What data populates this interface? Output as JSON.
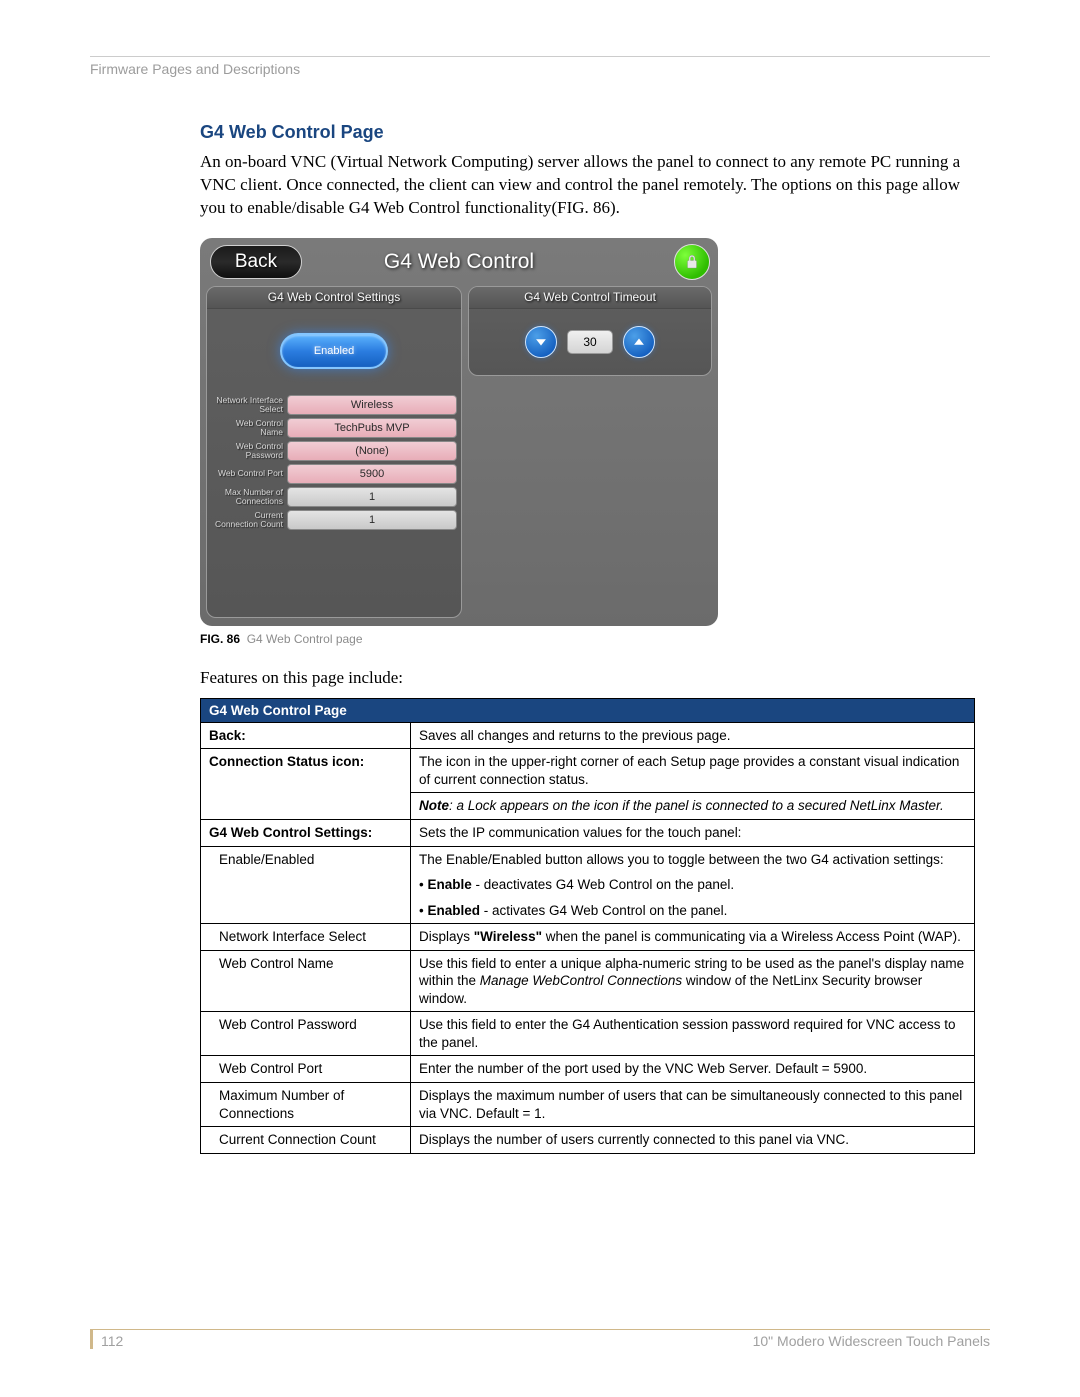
{
  "sectionHeader": "Firmware Pages and Descriptions",
  "title": "G4 Web Control Page",
  "introText": "An on-board VNC (Virtual Network Computing) server allows the panel to connect to any remote PC running a VNC client. Once connected, the client can view and control the panel remotely. The options on this page allow you to enable/disable G4 Web Control functionality(FIG. 86).",
  "screenshot": {
    "backBtn": "Back",
    "title": "G4 Web Control",
    "leftPanelTitle": "G4 Web Control Settings",
    "rightPanelTitle": "G4 Web Control Timeout",
    "enableBtn": "Enabled",
    "timeoutValue": "30",
    "fields": [
      {
        "label": "Network Interface Select",
        "value": "Wireless",
        "style": "pink"
      },
      {
        "label": "Web Control Name",
        "value": "TechPubs MVP",
        "style": "pink"
      },
      {
        "label": "Web Control Password",
        "value": "(None)",
        "style": "pink"
      },
      {
        "label": "Web Control Port",
        "value": "5900",
        "style": "pink"
      },
      {
        "label": "Max Number of Connections",
        "value": "1",
        "style": "grey"
      },
      {
        "label": "Current Connection Count",
        "value": "1",
        "style": "grey"
      }
    ]
  },
  "figCaption": {
    "num": "FIG. 86",
    "text": "G4 Web Control page"
  },
  "featuresLine": "Features on this page include:",
  "table": {
    "title": "G4 Web Control Page",
    "rows": {
      "back": {
        "label": "Back:",
        "desc": "Saves all changes and returns to the previous page."
      },
      "conn": {
        "label": "Connection Status icon:",
        "desc": "The icon in the upper-right corner of each Setup page provides a constant visual indication of current connection status."
      },
      "connNote": "Note: a Lock appears on the icon if the panel is connected to a secured NetLinx Master.",
      "g4settings": {
        "label": "G4 Web Control Settings:",
        "desc": "Sets the IP communication values for the touch panel:"
      },
      "enable": {
        "label": "Enable/Enabled",
        "desc": "The Enable/Enabled button allows you to toggle between the two G4 activation settings:"
      },
      "enableBul1": {
        "bold": "Enable",
        "rest": " - deactivates G4 Web Control on the panel."
      },
      "enableBul2": {
        "bold": "Enabled",
        "rest": " - activates G4 Web Control on the panel."
      },
      "netif": {
        "label": "Network Interface Select",
        "desc1": "Displays ",
        "bold": "\"Wireless\"",
        "desc2": " when the panel is communicating via a Wireless Access Point (WAP)."
      },
      "wcname": {
        "label": "Web Control Name",
        "desc1": "Use this field to enter a unique alpha-numeric string to be used as the panel's display name within the ",
        "ital": "Manage WebControl Connections",
        "desc2": " window of the NetLinx Security browser window."
      },
      "wcpass": {
        "label": "Web Control Password",
        "desc": "Use this field to enter the G4 Authentication session password required for VNC access to the panel."
      },
      "wcport": {
        "label": "Web Control Port",
        "desc": "Enter the number of the port used by the VNC Web Server. Default = 5900."
      },
      "maxconn": {
        "label": "Maximum Number of Connections",
        "desc": "Displays the maximum number of users that can be simultaneously connected to this panel via VNC. Default = 1."
      },
      "curconn": {
        "label": "Current Connection Count",
        "desc": "Displays the number of users currently connected to this panel via VNC."
      }
    }
  },
  "footer": {
    "pageNum": "112",
    "docTitle": "10\" Modero Widescreen Touch Panels"
  }
}
